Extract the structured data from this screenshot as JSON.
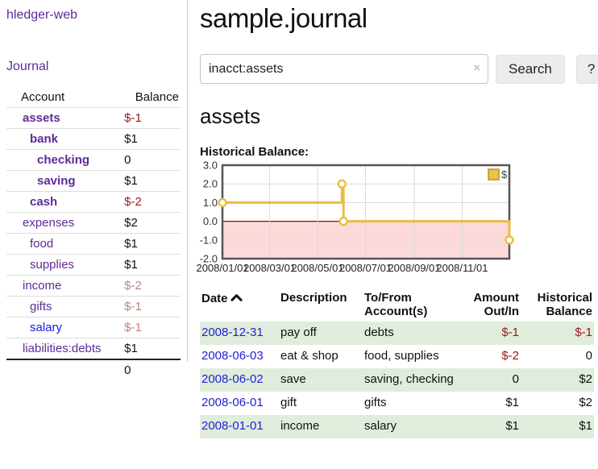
{
  "colors": {
    "accent_purple": "#5e2b97",
    "link_blue": "#2121d6",
    "negative_strong": "#9a1616",
    "negative_muted": "#c47e7e",
    "row_stripe_green": "#e0eddc",
    "chart_line": "#e8bd47",
    "chart_marker_fill": "#ffffff",
    "chart_legend_fill": "#e9c24a",
    "chart_legend_border": "#b99427",
    "chart_negative_region": "#fcdada",
    "chart_zero_line": "#7d1010",
    "chart_grid": "#d9d9d9",
    "chart_border": "#555555"
  },
  "sidebar": {
    "brand": "hledger-web",
    "nav": {
      "journal_label": "Journal"
    },
    "accounts_table": {
      "headers": {
        "account": "Account",
        "balance": "Balance"
      },
      "rows": [
        {
          "account": "assets",
          "balance": "$-1",
          "level": 0,
          "bold": true,
          "neg": "strong"
        },
        {
          "account": "bank",
          "balance": "$1",
          "level": 1,
          "bold": true,
          "neg": ""
        },
        {
          "account": "checking",
          "balance": "0",
          "level": 2,
          "bold": true,
          "neg": ""
        },
        {
          "account": "saving",
          "balance": "$1",
          "level": 2,
          "bold": true,
          "neg": ""
        },
        {
          "account": "cash",
          "balance": "$-2",
          "level": 1,
          "bold": true,
          "neg": "strong"
        },
        {
          "account": "expenses",
          "balance": "$2",
          "level": 0,
          "bold": false,
          "neg": ""
        },
        {
          "account": "food",
          "balance": "$1",
          "level": 1,
          "bold": false,
          "neg": ""
        },
        {
          "account": "supplies",
          "balance": "$1",
          "level": 1,
          "bold": false,
          "neg": ""
        },
        {
          "account": "income",
          "balance": "$-2",
          "level": 0,
          "bold": false,
          "neg": "muted"
        },
        {
          "account": "gifts",
          "balance": "$-1",
          "level": 1,
          "bold": false,
          "neg": "muted"
        },
        {
          "account": "salary",
          "balance": "$-1",
          "level": 1,
          "bold": false,
          "neg": "muted",
          "blue": true
        },
        {
          "account": "liabilities:debts",
          "balance": "$1",
          "level": 0,
          "bold": false,
          "neg": ""
        }
      ],
      "total": "0"
    }
  },
  "main": {
    "title": "sample.journal",
    "search": {
      "value": "inacct:assets",
      "clear_icon": "×",
      "button_label": "Search",
      "help_label": "?"
    },
    "account_heading": "assets",
    "chart_label": "Historical Balance:"
  },
  "chart_data": {
    "type": "line",
    "step": true,
    "title": "Historical Balance",
    "xlim": [
      "2008-01-01",
      "2008-12-31"
    ],
    "ylim": [
      -2,
      3
    ],
    "y_ticks": [
      "3.0",
      "2.0",
      "1.0",
      "0.0",
      "-1.0",
      "-2.0"
    ],
    "y_tick_values": [
      3,
      2,
      1,
      0,
      -1,
      -2
    ],
    "x_ticks": [
      "2008/01/01",
      "2008/03/01",
      "2008/05/01",
      "2008/07/01",
      "2008/09/01",
      "2008/11/01"
    ],
    "grid": true,
    "negative_region_shaded": true,
    "legend_position": "top-right",
    "series": [
      {
        "name": "$",
        "points": [
          [
            "2008-01-01",
            1
          ],
          [
            "2008-06-01",
            2
          ],
          [
            "2008-06-03",
            0
          ],
          [
            "2008-12-31",
            -1
          ]
        ]
      }
    ]
  },
  "register_table": {
    "headers": {
      "date": "Date",
      "description": "Description",
      "accounts": "To/From Account(s)",
      "amount": "Amount Out/In",
      "balance": "Historical Balance"
    },
    "sort": {
      "column": "date",
      "direction": "ascending"
    },
    "rows": [
      {
        "date": "2008-12-31",
        "description": "pay off",
        "accounts": "debts",
        "amount": "$-1",
        "amount_neg": true,
        "balance": "$-1",
        "balance_neg": true
      },
      {
        "date": "2008-06-03",
        "description": "eat & shop",
        "accounts": "food, supplies",
        "amount": "$-2",
        "amount_neg": true,
        "balance": "0",
        "balance_neg": false
      },
      {
        "date": "2008-06-02",
        "description": "save",
        "accounts": "saving, checking",
        "amount": "0",
        "amount_neg": false,
        "balance": "$2",
        "balance_neg": false
      },
      {
        "date": "2008-06-01",
        "description": "gift",
        "accounts": "gifts",
        "amount": "$1",
        "amount_neg": false,
        "balance": "$2",
        "balance_neg": false
      },
      {
        "date": "2008-01-01",
        "description": "income",
        "accounts": "salary",
        "amount": "$1",
        "amount_neg": false,
        "balance": "$1",
        "balance_neg": false
      }
    ]
  }
}
